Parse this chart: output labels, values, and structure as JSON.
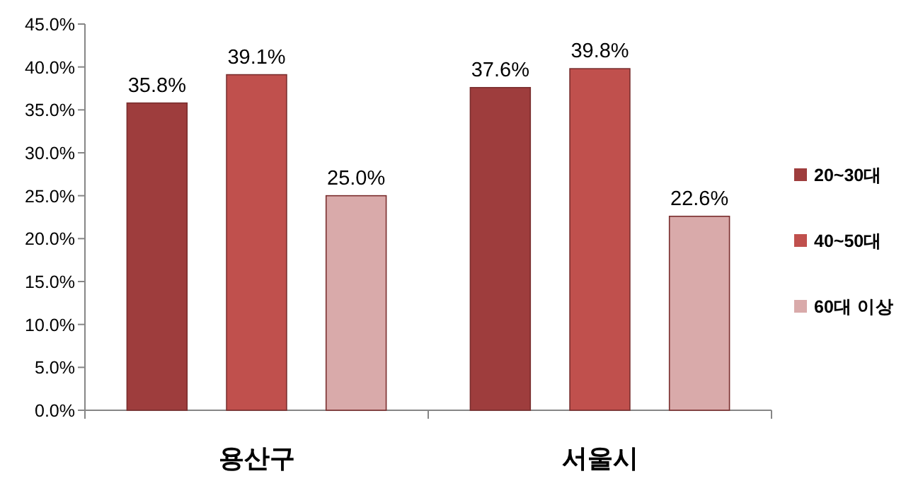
{
  "chart_data": {
    "type": "bar",
    "categories": [
      "용산구",
      "서울시"
    ],
    "series": [
      {
        "name": "20~30대",
        "color": "#9e3d3d",
        "values": [
          35.8,
          37.6
        ],
        "value_labels": [
          "35.8%",
          "37.6%"
        ]
      },
      {
        "name": "40~50대",
        "color": "#c0504d",
        "values": [
          39.1,
          39.8
        ],
        "value_labels": [
          "39.1%",
          "39.8%"
        ]
      },
      {
        "name": "60대 이상",
        "color": "#d9aaaa",
        "values": [
          25.0,
          22.6
        ],
        "value_labels": [
          "25.0%",
          "22.6%"
        ]
      }
    ],
    "ylim": [
      0,
      45
    ],
    "yticks": [
      {
        "value": 0,
        "label": "0.0%"
      },
      {
        "value": 5,
        "label": "5.0%"
      },
      {
        "value": 10,
        "label": "10.0%"
      },
      {
        "value": 15,
        "label": "15.0%"
      },
      {
        "value": 20,
        "label": "20.0%"
      },
      {
        "value": 25,
        "label": "25.0%"
      },
      {
        "value": 30,
        "label": "30.0%"
      },
      {
        "value": 35,
        "label": "35.0%"
      },
      {
        "value": 40,
        "label": "40.0%"
      },
      {
        "value": 45,
        "label": "45.0%"
      }
    ],
    "legend": "right",
    "grid": false
  }
}
